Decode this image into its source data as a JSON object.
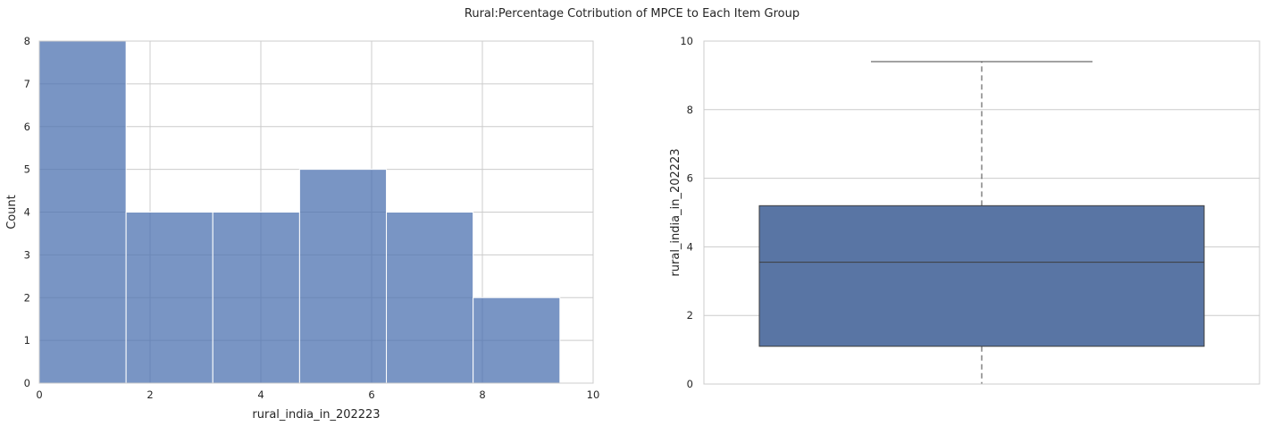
{
  "figure": {
    "title": "Rural:Percentage Cotribution of MPCE to Each Item Group"
  },
  "chart_data": [
    {
      "type": "histogram",
      "xlabel": "rural_india_in_202223",
      "ylabel": "Count",
      "xlim": [
        0,
        10
      ],
      "ylim": [
        0,
        8
      ],
      "xticks": [
        "0",
        "2",
        "4",
        "6",
        "8",
        "10"
      ],
      "yticks": [
        "0",
        "1",
        "2",
        "3",
        "4",
        "5",
        "6",
        "7",
        "8"
      ],
      "bin_edges": [
        0,
        1.567,
        3.133,
        4.7,
        6.267,
        7.833,
        9.4
      ],
      "counts": [
        8,
        4,
        4,
        5,
        4,
        2
      ],
      "grid": true,
      "color": "#4c72b0"
    },
    {
      "type": "box",
      "xlabel": "",
      "ylabel": "rural_india_in_202223",
      "ylim": [
        0,
        10
      ],
      "yticks": [
        "0",
        "2",
        "4",
        "6",
        "8",
        "10"
      ],
      "stats": {
        "whislo": 0.0,
        "q1": 1.1,
        "median": 3.55,
        "q3": 5.2,
        "whishi": 9.4
      },
      "grid": true,
      "color": "#4c72b0"
    }
  ]
}
